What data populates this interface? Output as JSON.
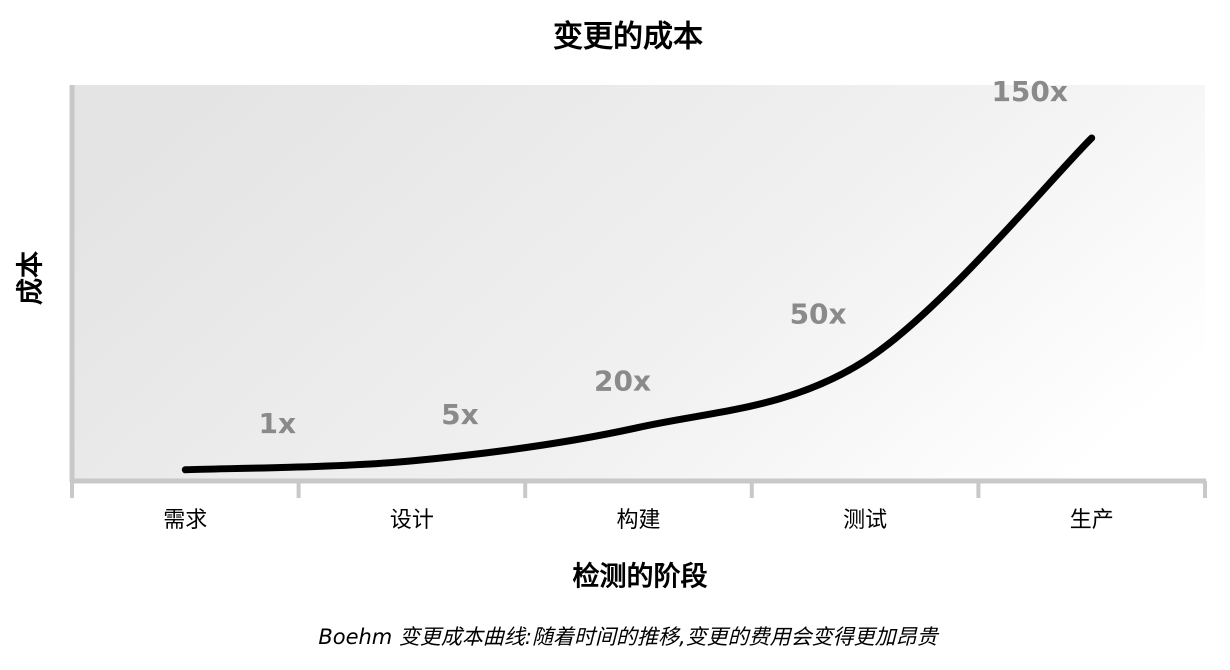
{
  "chart_data": {
    "type": "line",
    "title": "变更的成本",
    "x_label": "检测的阶段",
    "y_label": "成本",
    "categories": [
      "需求",
      "设计",
      "构建",
      "测试",
      "生产"
    ],
    "values": [
      1,
      5,
      20,
      50,
      150
    ],
    "value_labels": [
      "1x",
      "5x",
      "20x",
      "50x",
      "150x"
    ],
    "color": "#000000",
    "caption": "Boehm 变更成本曲线:随着时间的推移,变更的费用会变得更加昂贵"
  }
}
